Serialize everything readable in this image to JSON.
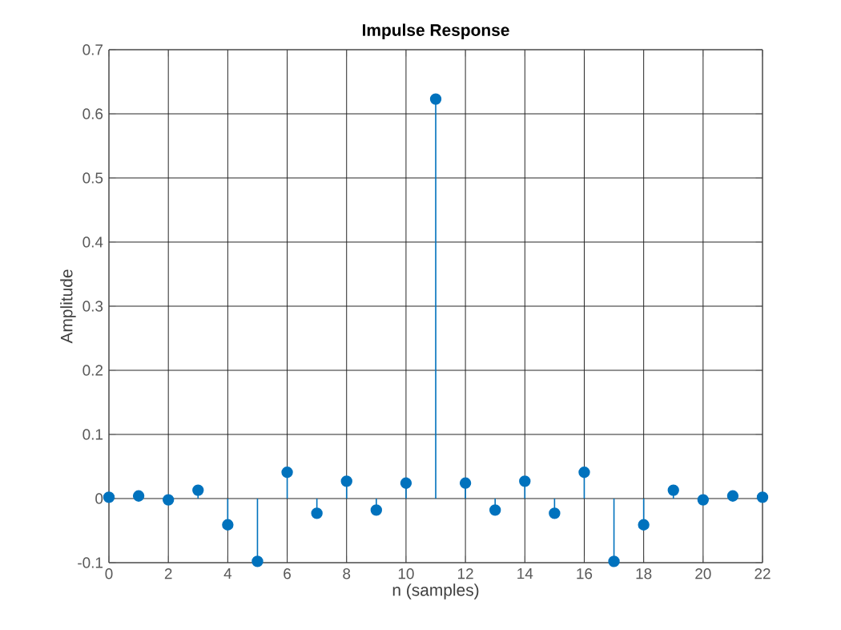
{
  "chart_data": {
    "type": "lollipop",
    "title": "Impulse Response",
    "xlabel": "n (samples)",
    "ylabel": "Amplitude",
    "x": [
      0,
      1,
      2,
      3,
      4,
      5,
      6,
      7,
      8,
      9,
      10,
      11,
      12,
      13,
      14,
      15,
      16,
      17,
      18,
      19,
      20,
      21,
      22
    ],
    "values": [
      0.002,
      0.004,
      -0.002,
      0.013,
      -0.041,
      -0.098,
      0.041,
      -0.023,
      0.027,
      -0.018,
      0.024,
      0.623,
      0.024,
      -0.018,
      0.027,
      -0.023,
      0.041,
      -0.098,
      -0.041,
      0.013,
      -0.002,
      0.004,
      0.002
    ],
    "color": "#0072bd",
    "marker": "circle",
    "grid": true,
    "xlim": [
      0,
      22
    ],
    "xticks": [
      0,
      2,
      4,
      6,
      8,
      10,
      12,
      14,
      16,
      18,
      20,
      22
    ],
    "ylim": [
      -0.1,
      0.7
    ],
    "yticks": [
      -0.1,
      0,
      0.1,
      0.2,
      0.3,
      0.4,
      0.5,
      0.6,
      0.7
    ]
  }
}
